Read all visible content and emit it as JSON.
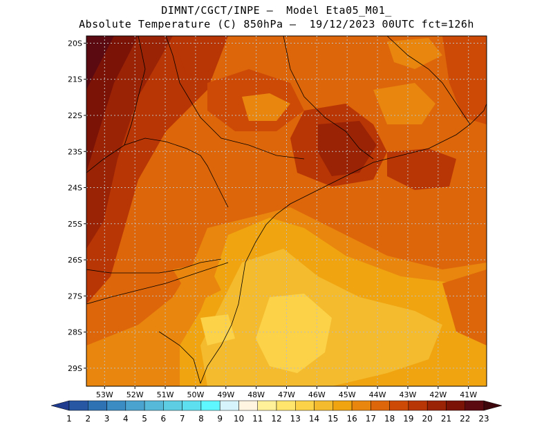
{
  "title_line1": "DIMNT/CGCT/INPE –  Model Eta05_M01_",
  "title_line2": "Absolute Temperature (C) 850hPa –  19/12/2023 00UTC fct=126h",
  "lat_labels": [
    "20S",
    "21S",
    "22S",
    "23S",
    "24S",
    "25S",
    "26S",
    "27S",
    "28S",
    "29S"
  ],
  "lon_labels": [
    "53W",
    "52W",
    "51W",
    "50W",
    "49W",
    "48W",
    "47W",
    "46W",
    "45W",
    "44W",
    "43W",
    "42W",
    "41W"
  ],
  "colorbar": {
    "labels": [
      "1",
      "2",
      "3",
      "4",
      "5",
      "6",
      "7",
      "8",
      "9",
      "10",
      "11",
      "12",
      "13",
      "14",
      "15",
      "16",
      "17",
      "18",
      "19",
      "20",
      "21",
      "22",
      "23"
    ],
    "colors": [
      "#1f3c8f",
      "#2756a3",
      "#2f72b4",
      "#3b8cc2",
      "#4aa3cf",
      "#57b9da",
      "#5ccde3",
      "#5edff0",
      "#5ff7ff",
      "#d6f4fb",
      "#fff5e1",
      "#fff09a",
      "#ffe56b",
      "#fbd248",
      "#f4bb2f",
      "#f0a410",
      "#e8860d",
      "#dd650a",
      "#cd4a06",
      "#b83505",
      "#9a2306",
      "#7c1307",
      "#5b0a12",
      "#3d050c"
    ]
  },
  "map": {
    "lon_range": [
      -53.6,
      -40.4
    ],
    "lat_range": [
      -29.5,
      -19.8
    ]
  }
}
